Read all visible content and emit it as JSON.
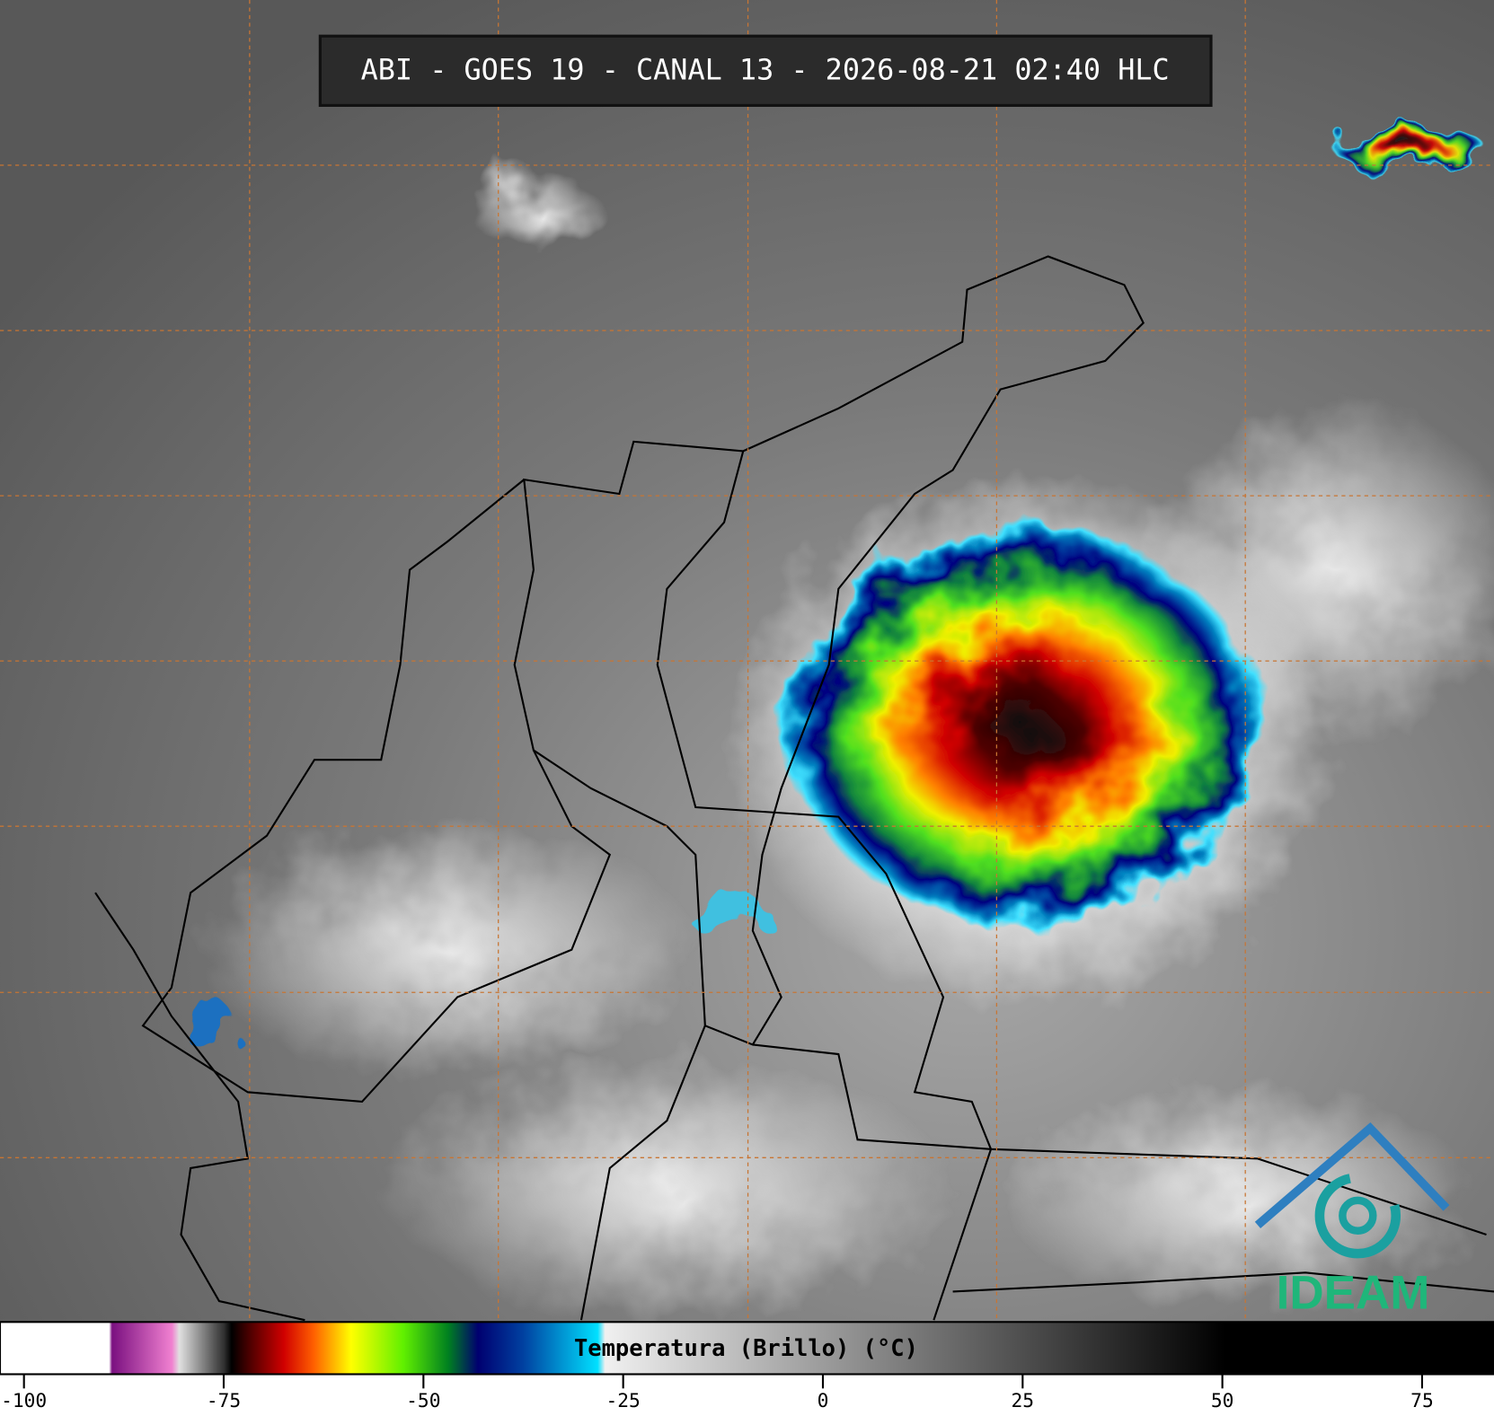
{
  "title": "ABI - GOES 19 - CANAL 13 - 2026-08-21 02:40 HLC",
  "colorbar": {
    "label": "Temperatura (Brillo) (°C)",
    "range": [
      -103,
      84
    ],
    "ticks": [
      -100,
      -75,
      -50,
      -25,
      0,
      25,
      50,
      75
    ]
  },
  "logo": "IDEAM"
}
